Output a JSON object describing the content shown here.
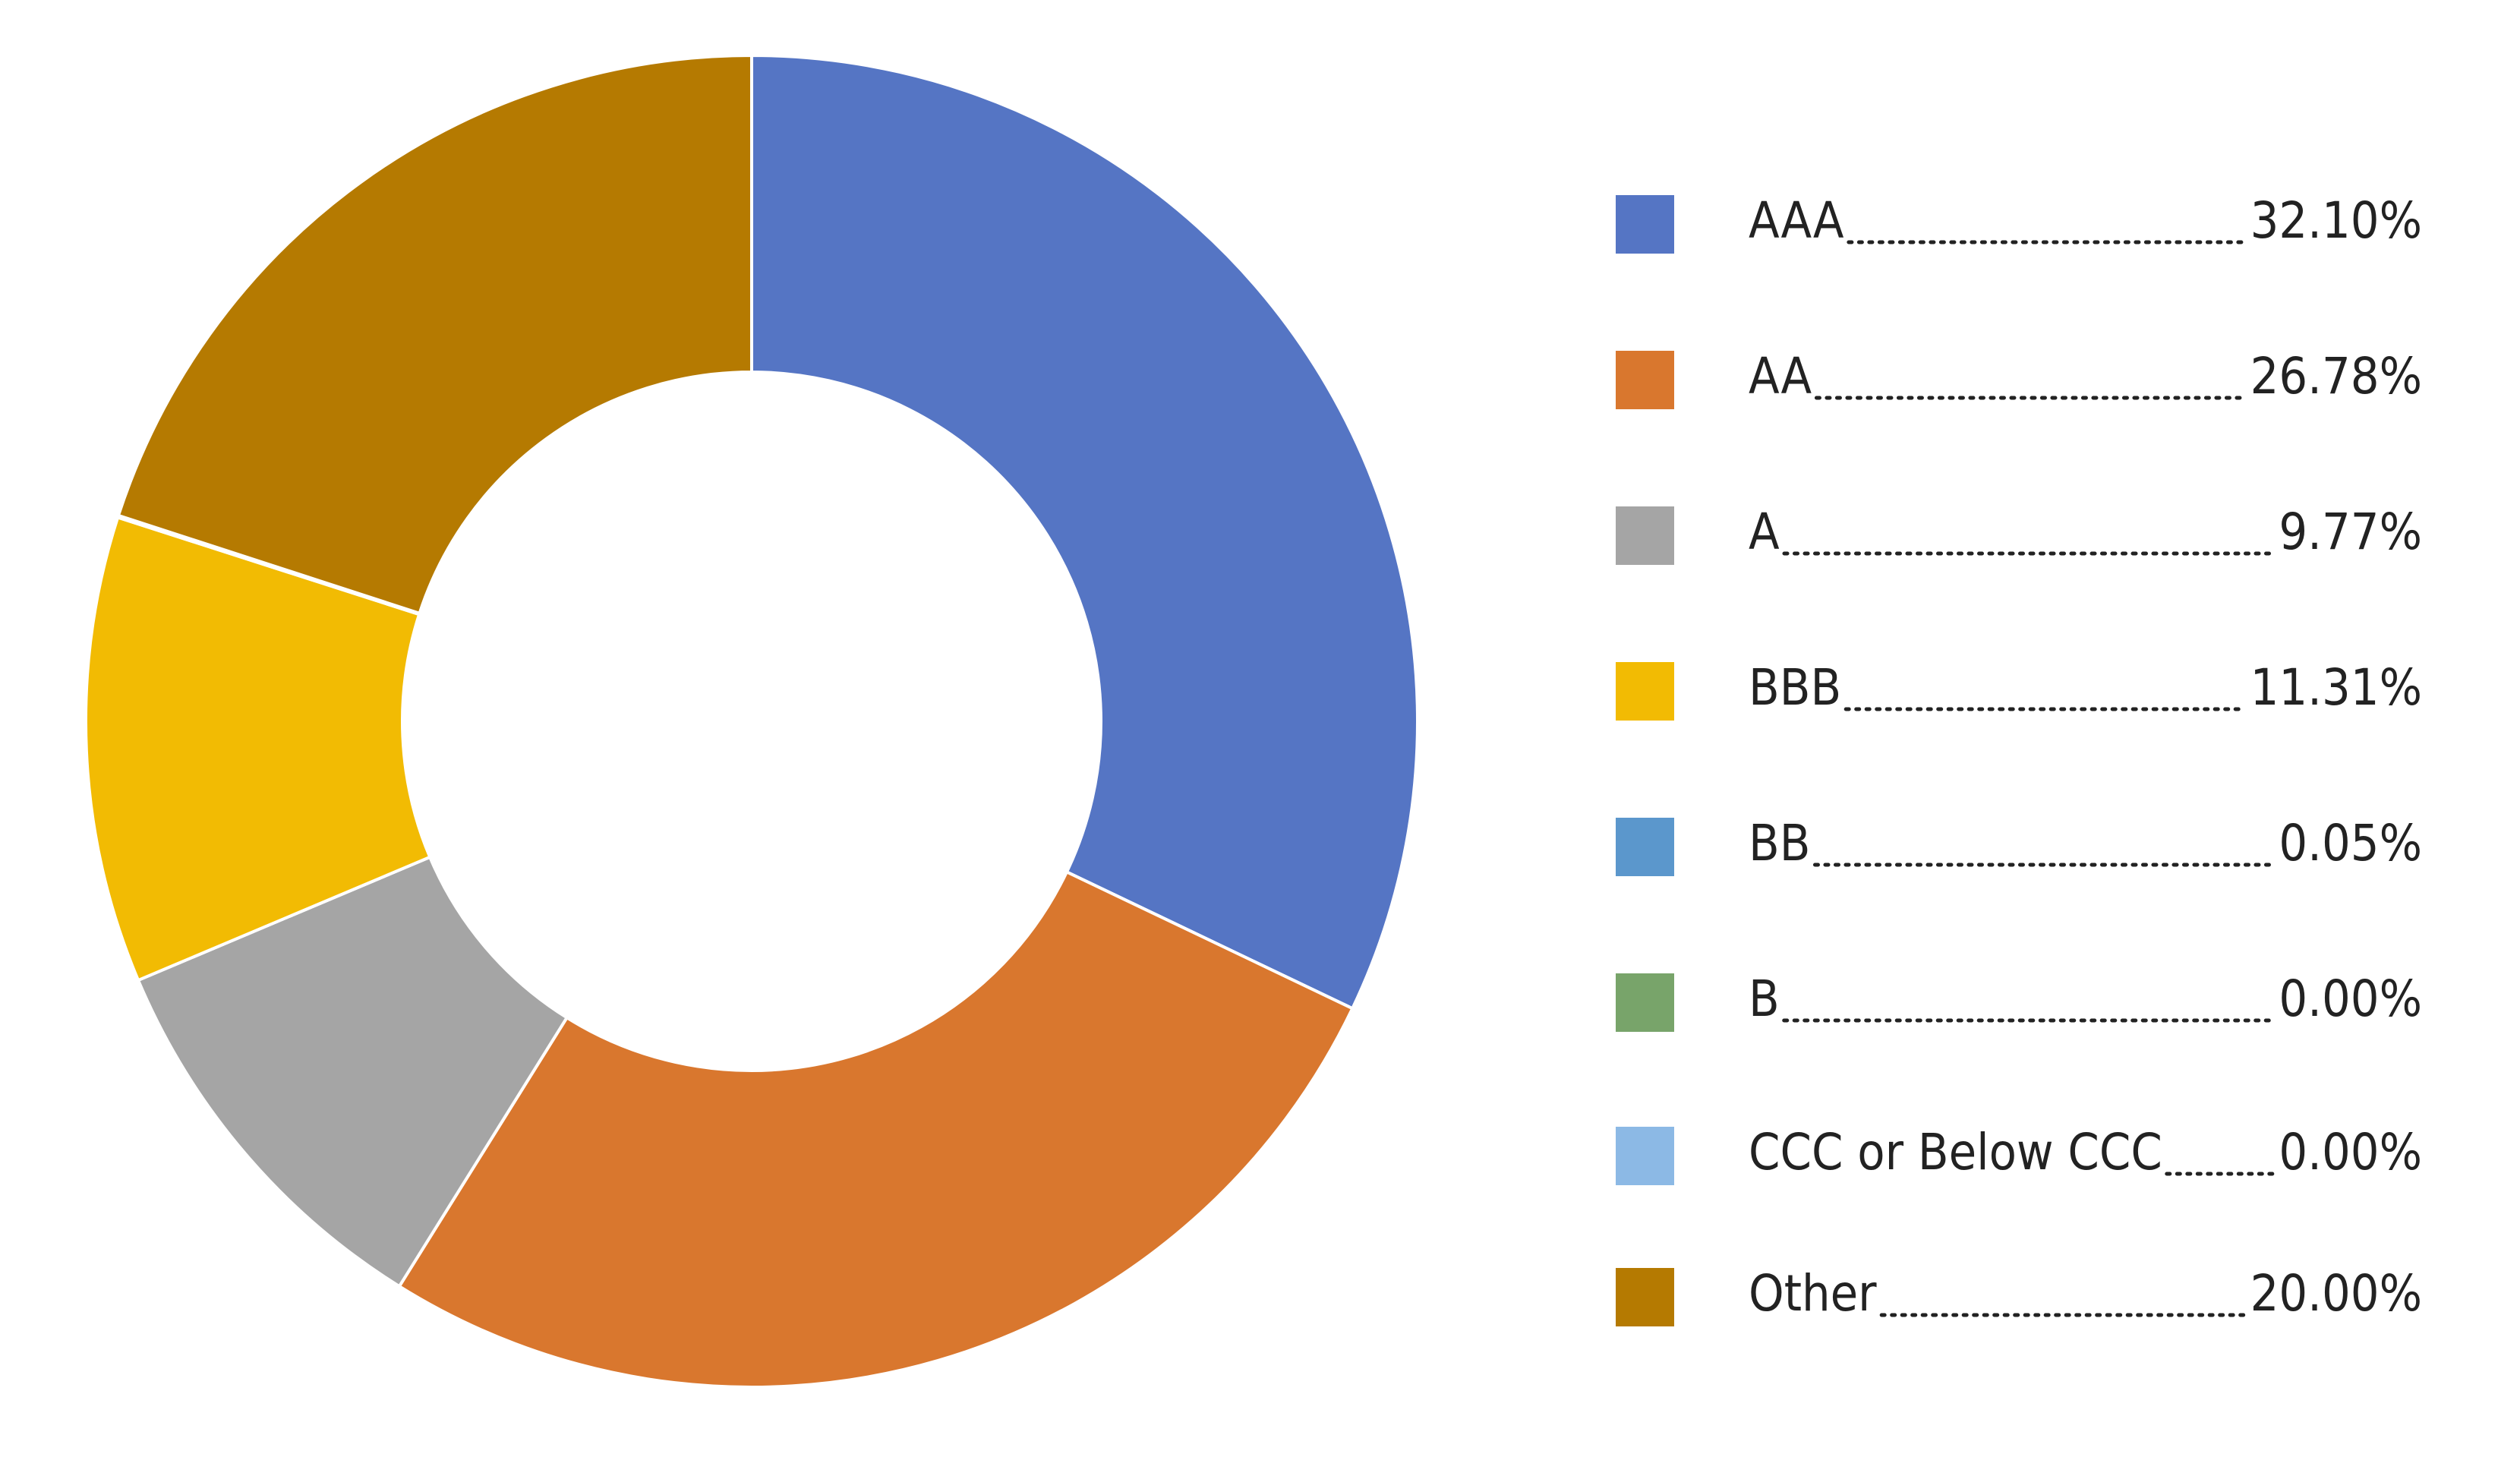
{
  "chart_data": {
    "type": "donut",
    "categories": [
      "AAA",
      "AA",
      "A",
      "BBB",
      "BB",
      "B",
      "CCC or Below CCC",
      "Other"
    ],
    "values": [
      32.1,
      26.78,
      9.77,
      11.31,
      0.05,
      0.0,
      0.0,
      20.0
    ],
    "value_labels": [
      "32.10%",
      "26.78%",
      "9.77%",
      "11.31%",
      "0.05%",
      "0.00%",
      "0.00%",
      "20.00%"
    ],
    "colors": [
      "#5575c4",
      "#d9772e",
      "#a5a5a5",
      "#f2bb03",
      "#5b97cc",
      "#78a46a",
      "#8cb9e5",
      "#b57a01"
    ],
    "legend": "right"
  }
}
